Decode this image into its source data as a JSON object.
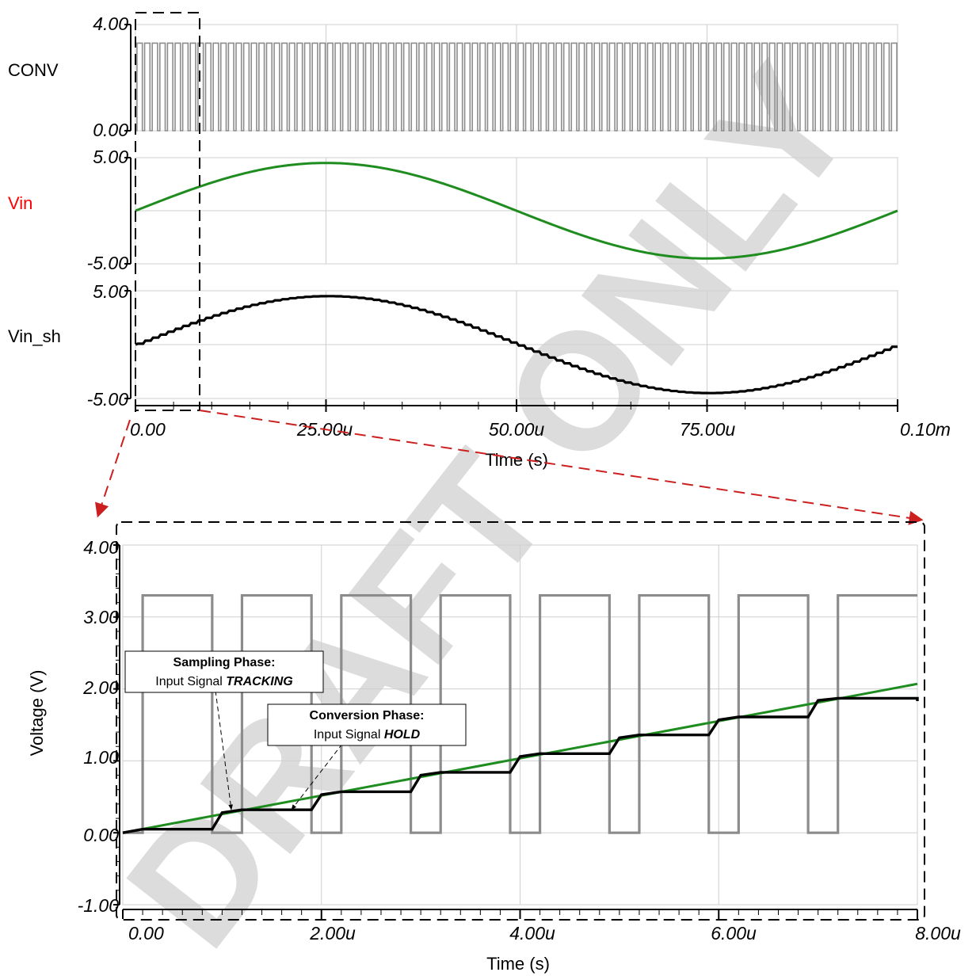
{
  "watermark": "DRAFT ONLY",
  "colors": {
    "conv": "#8c8c8c",
    "vin": "#1e8c1e",
    "vin_sh": "#000000",
    "vin_label": "#ff0000",
    "arrow": "#cc1f1f",
    "watermark": "#dcdcdc"
  },
  "chart_data": [
    {
      "type": "line",
      "title": "",
      "xlabel": "Time (s)",
      "ylabel": "",
      "x_ticks": [
        "0.00",
        "25.00u",
        "50.00u",
        "75.00u",
        "0.10m"
      ],
      "xlim": [
        0,
        0.0001
      ],
      "grid": true,
      "panels": [
        {
          "name": "CONV",
          "ylim": [
            0,
            4
          ],
          "y_ticks": [
            "0.00",
            "4.00"
          ],
          "signal": {
            "kind": "square",
            "low": 0,
            "high": 3.3,
            "period": 1e-06,
            "duty": 0.7,
            "x_range": [
              0,
              0.0001
            ]
          }
        },
        {
          "name": "Vin",
          "ylim": [
            -5,
            5
          ],
          "y_ticks": [
            "-5.00",
            "5.00"
          ],
          "signal": {
            "kind": "sine",
            "amplitude": 4.5,
            "frequency": 10000,
            "offset": 0,
            "x_range": [
              0,
              0.0001
            ]
          }
        },
        {
          "name": "Vin_sh",
          "ylim": [
            -5,
            5
          ],
          "y_ticks": [
            "-5.00",
            "5.00"
          ],
          "signal": {
            "kind": "sample_hold_sine",
            "amplitude": 4.5,
            "frequency": 10000,
            "period": 1e-06,
            "track_fraction": 0.3,
            "x_range": [
              0,
              0.0001
            ]
          }
        }
      ]
    },
    {
      "type": "line",
      "title": "",
      "xlabel": "Time (s)",
      "ylabel": "Voltage (V)",
      "xlim": [
        0,
        8e-06
      ],
      "ylim": [
        -1,
        4
      ],
      "grid": true,
      "x_ticks": [
        "0.00",
        "2.00u",
        "4.00u",
        "6.00u",
        "8.00u"
      ],
      "y_ticks": [
        "-1.00",
        "0.00",
        "1.00",
        "2.00",
        "3.00",
        "4.00"
      ],
      "series": [
        {
          "name": "CONV",
          "x": [
            0,
            2e-07,
            2e-07,
            9e-07,
            9e-07,
            1.2e-06,
            1.2e-06,
            1.9e-06,
            1.9e-06,
            2.2e-06,
            2.2e-06,
            2.9e-06,
            2.9e-06,
            3.2e-06,
            3.2e-06,
            3.9e-06,
            3.9e-06,
            4.2e-06,
            4.2e-06,
            4.9e-06,
            4.9e-06,
            5.2e-06,
            5.2e-06,
            5.9e-06,
            5.9e-06,
            6.2e-06,
            6.2e-06,
            6.9e-06,
            6.9e-06,
            7.2e-06,
            7.2e-06,
            8e-06
          ],
          "y": [
            0,
            0,
            3.3,
            3.3,
            0,
            0,
            3.3,
            3.3,
            0,
            0,
            3.3,
            3.3,
            0,
            0,
            3.3,
            3.3,
            0,
            0,
            3.3,
            3.3,
            0,
            0,
            3.3,
            3.3,
            0,
            0,
            3.3,
            3.3,
            0,
            0,
            3.3,
            3.3
          ]
        },
        {
          "name": "Vin",
          "x": [
            0,
            8e-06
          ],
          "y": [
            0,
            2.07
          ]
        },
        {
          "name": "Vin_sh",
          "x": [
            0,
            2e-07,
            9e-07,
            1e-06,
            1.2e-06,
            1.9e-06,
            2e-06,
            2.2e-06,
            2.9e-06,
            3e-06,
            3.2e-06,
            3.9e-06,
            4e-06,
            4.2e-06,
            4.9e-06,
            5e-06,
            5.2e-06,
            5.9e-06,
            6e-06,
            6.2e-06,
            6.9e-06,
            7e-06,
            7.2e-06,
            8e-06,
            8e-06
          ],
          "y": [
            0,
            0.05,
            0.05,
            0.28,
            0.32,
            0.32,
            0.53,
            0.57,
            0.57,
            0.8,
            0.84,
            0.84,
            1.06,
            1.1,
            1.1,
            1.32,
            1.36,
            1.36,
            1.57,
            1.61,
            1.61,
            1.84,
            1.87,
            1.87,
            1.83
          ]
        }
      ],
      "annotations": [
        {
          "line1": "Sampling Phase:",
          "line2_prefix": "Input Signal ",
          "line2_emph": "TRACKING",
          "points_to": [
            1.1e-06,
            0.3
          ]
        },
        {
          "line1": "Conversion Phase:",
          "line2_prefix": "Input Signal ",
          "line2_emph": "HOLD",
          "points_to": [
            1.7e-06,
            0.32
          ]
        }
      ]
    }
  ]
}
